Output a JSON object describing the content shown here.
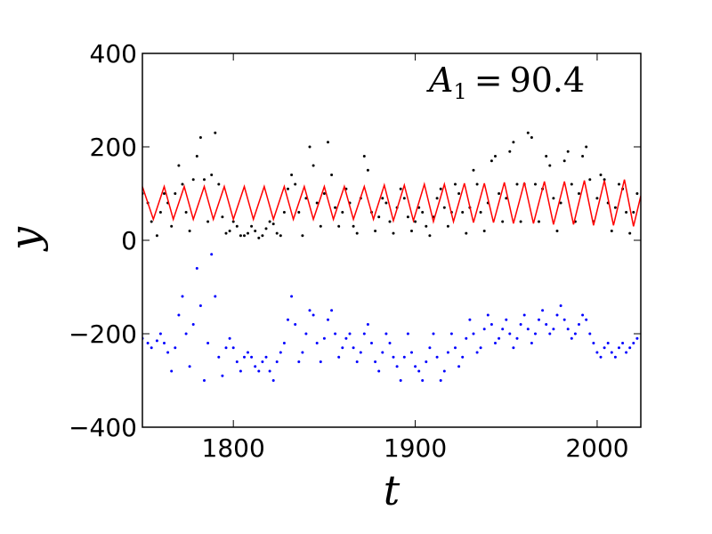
{
  "chart_data": {
    "type": "scatter",
    "xlabel": "t",
    "ylabel": "y",
    "xlim": [
      1750,
      2024
    ],
    "ylim": [
      -400,
      400
    ],
    "xticks": [
      1800,
      1900,
      2000
    ],
    "yticks": [
      400,
      200,
      0,
      -200,
      -400
    ],
    "xtick_labels": [
      "1800",
      "1900",
      "2000"
    ],
    "ytick_labels": [
      "400",
      "200",
      "0",
      "−200",
      "−400"
    ],
    "annotation": {
      "symbol": "A",
      "subscript": "1",
      "relation": "=",
      "value": "90.4"
    },
    "grid": false,
    "series": [
      {
        "style": "scatter",
        "color": "#000000",
        "x": [
          1750,
          1753,
          1755,
          1758,
          1760,
          1762,
          1764,
          1766,
          1768,
          1770,
          1772,
          1774,
          1776,
          1778,
          1780,
          1782,
          1784,
          1786,
          1788,
          1790,
          1792,
          1794,
          1796,
          1798,
          1800,
          1802,
          1804,
          1806,
          1808,
          1810,
          1812,
          1814,
          1816,
          1818,
          1820,
          1822,
          1824,
          1826,
          1828,
          1830,
          1832,
          1834,
          1836,
          1838,
          1840,
          1842,
          1844,
          1846,
          1848,
          1850,
          1852,
          1854,
          1856,
          1858,
          1860,
          1862,
          1864,
          1866,
          1868,
          1870,
          1872,
          1874,
          1876,
          1878,
          1880,
          1882,
          1884,
          1886,
          1888,
          1890,
          1892,
          1894,
          1896,
          1898,
          1900,
          1902,
          1904,
          1906,
          1908,
          1910,
          1912,
          1914,
          1916,
          1918,
          1920,
          1922,
          1924,
          1926,
          1928,
          1930,
          1932,
          1934,
          1936,
          1938,
          1940,
          1942,
          1944,
          1946,
          1948,
          1950,
          1952,
          1954,
          1956,
          1958,
          1960,
          1962,
          1964,
          1966,
          1968,
          1970,
          1972,
          1974,
          1976,
          1978,
          1980,
          1982,
          1984,
          1986,
          1988,
          1990,
          1992,
          1994,
          1996,
          1998,
          2000,
          2002,
          2004,
          2006,
          2008,
          2010,
          2012,
          2014,
          2016,
          2018,
          2020,
          2022
        ],
        "y": [
          100,
          80,
          40,
          10,
          60,
          100,
          80,
          30,
          100,
          160,
          120,
          60,
          20,
          130,
          180,
          220,
          130,
          40,
          140,
          230,
          120,
          50,
          15,
          20,
          40,
          30,
          10,
          10,
          15,
          30,
          20,
          5,
          10,
          25,
          40,
          35,
          15,
          10,
          60,
          110,
          140,
          120,
          60,
          10,
          90,
          200,
          160,
          80,
          30,
          100,
          210,
          140,
          70,
          30,
          60,
          110,
          80,
          30,
          15,
          90,
          180,
          150,
          60,
          20,
          50,
          90,
          80,
          40,
          15,
          70,
          110,
          90,
          50,
          20,
          40,
          70,
          60,
          30,
          10,
          50,
          90,
          110,
          70,
          30,
          60,
          120,
          100,
          60,
          15,
          70,
          150,
          120,
          60,
          20,
          80,
          170,
          180,
          100,
          40,
          90,
          190,
          210,
          120,
          40,
          120,
          230,
          220,
          120,
          40,
          110,
          180,
          160,
          90,
          20,
          80,
          170,
          190,
          120,
          40,
          100,
          180,
          200,
          130,
          40,
          90,
          140,
          130,
          80,
          20,
          70,
          120,
          110,
          60,
          15,
          60,
          100
        ]
      },
      {
        "style": "line",
        "color": "#ff0000",
        "x": [
          1750,
          1756,
          1762,
          1767,
          1773,
          1778,
          1784,
          1789,
          1795,
          1800,
          1806,
          1811,
          1817,
          1822,
          1828,
          1833,
          1839,
          1844,
          1850,
          1855,
          1861,
          1866,
          1872,
          1877,
          1883,
          1888,
          1894,
          1899,
          1905,
          1910,
          1916,
          1921,
          1927,
          1932,
          1938,
          1943,
          1949,
          1954,
          1960,
          1965,
          1971,
          1976,
          1982,
          1987,
          1993,
          1998,
          2004,
          2009,
          2015,
          2020,
          2024
        ],
        "y": [
          115,
          45,
          115,
          45,
          115,
          45,
          115,
          45,
          115,
          45,
          115,
          45,
          115,
          45,
          115,
          45,
          115,
          45,
          115,
          45,
          115,
          45,
          115,
          45,
          118,
          42,
          118,
          42,
          120,
          40,
          120,
          40,
          122,
          38,
          122,
          38,
          124,
          36,
          124,
          36,
          126,
          34,
          126,
          34,
          128,
          32,
          128,
          32,
          130,
          30,
          95
        ]
      },
      {
        "style": "scatter",
        "color": "#0000ff",
        "x": [
          1750,
          1753,
          1755,
          1758,
          1760,
          1762,
          1764,
          1766,
          1768,
          1770,
          1772,
          1774,
          1776,
          1778,
          1780,
          1782,
          1784,
          1786,
          1788,
          1790,
          1792,
          1794,
          1796,
          1798,
          1800,
          1802,
          1804,
          1806,
          1808,
          1810,
          1812,
          1814,
          1816,
          1818,
          1820,
          1822,
          1824,
          1826,
          1828,
          1830,
          1832,
          1834,
          1836,
          1838,
          1840,
          1842,
          1844,
          1846,
          1848,
          1850,
          1852,
          1854,
          1856,
          1858,
          1860,
          1862,
          1864,
          1866,
          1868,
          1870,
          1872,
          1874,
          1876,
          1878,
          1880,
          1882,
          1884,
          1886,
          1888,
          1890,
          1892,
          1894,
          1896,
          1898,
          1900,
          1902,
          1904,
          1906,
          1908,
          1910,
          1912,
          1914,
          1916,
          1918,
          1920,
          1922,
          1924,
          1926,
          1928,
          1930,
          1932,
          1934,
          1936,
          1938,
          1940,
          1942,
          1944,
          1946,
          1948,
          1950,
          1952,
          1954,
          1956,
          1958,
          1960,
          1962,
          1964,
          1966,
          1968,
          1970,
          1972,
          1974,
          1976,
          1978,
          1980,
          1982,
          1984,
          1986,
          1988,
          1990,
          1992,
          1994,
          1996,
          1998,
          2000,
          2002,
          2004,
          2006,
          2008,
          2010,
          2012,
          2014,
          2016,
          2018,
          2020,
          2022
        ],
        "y": [
          -210,
          -220,
          -230,
          -215,
          -200,
          -220,
          -240,
          -280,
          -230,
          -160,
          -120,
          -200,
          -270,
          -180,
          -60,
          -140,
          -300,
          -220,
          -30,
          -120,
          -250,
          -290,
          -230,
          -210,
          -230,
          -260,
          -280,
          -250,
          -240,
          -250,
          -270,
          -280,
          -260,
          -250,
          -280,
          -300,
          -260,
          -240,
          -220,
          -170,
          -120,
          -180,
          -260,
          -240,
          -200,
          -150,
          -160,
          -220,
          -260,
          -210,
          -170,
          -150,
          -200,
          -250,
          -230,
          -210,
          -200,
          -230,
          -260,
          -240,
          -200,
          -180,
          -220,
          -260,
          -280,
          -240,
          -200,
          -220,
          -250,
          -270,
          -300,
          -250,
          -200,
          -240,
          -270,
          -280,
          -300,
          -260,
          -230,
          -200,
          -250,
          -300,
          -280,
          -240,
          -200,
          -230,
          -270,
          -250,
          -210,
          -170,
          -200,
          -240,
          -230,
          -190,
          -160,
          -180,
          -220,
          -210,
          -190,
          -170,
          -200,
          -230,
          -210,
          -180,
          -160,
          -190,
          -220,
          -200,
          -170,
          -150,
          -180,
          -200,
          -190,
          -160,
          -140,
          -170,
          -190,
          -210,
          -200,
          -180,
          -160,
          -170,
          -200,
          -220,
          -240,
          -250,
          -230,
          -220,
          -240,
          -250,
          -230,
          -220,
          -240,
          -230,
          -220,
          -210
        ]
      }
    ]
  }
}
